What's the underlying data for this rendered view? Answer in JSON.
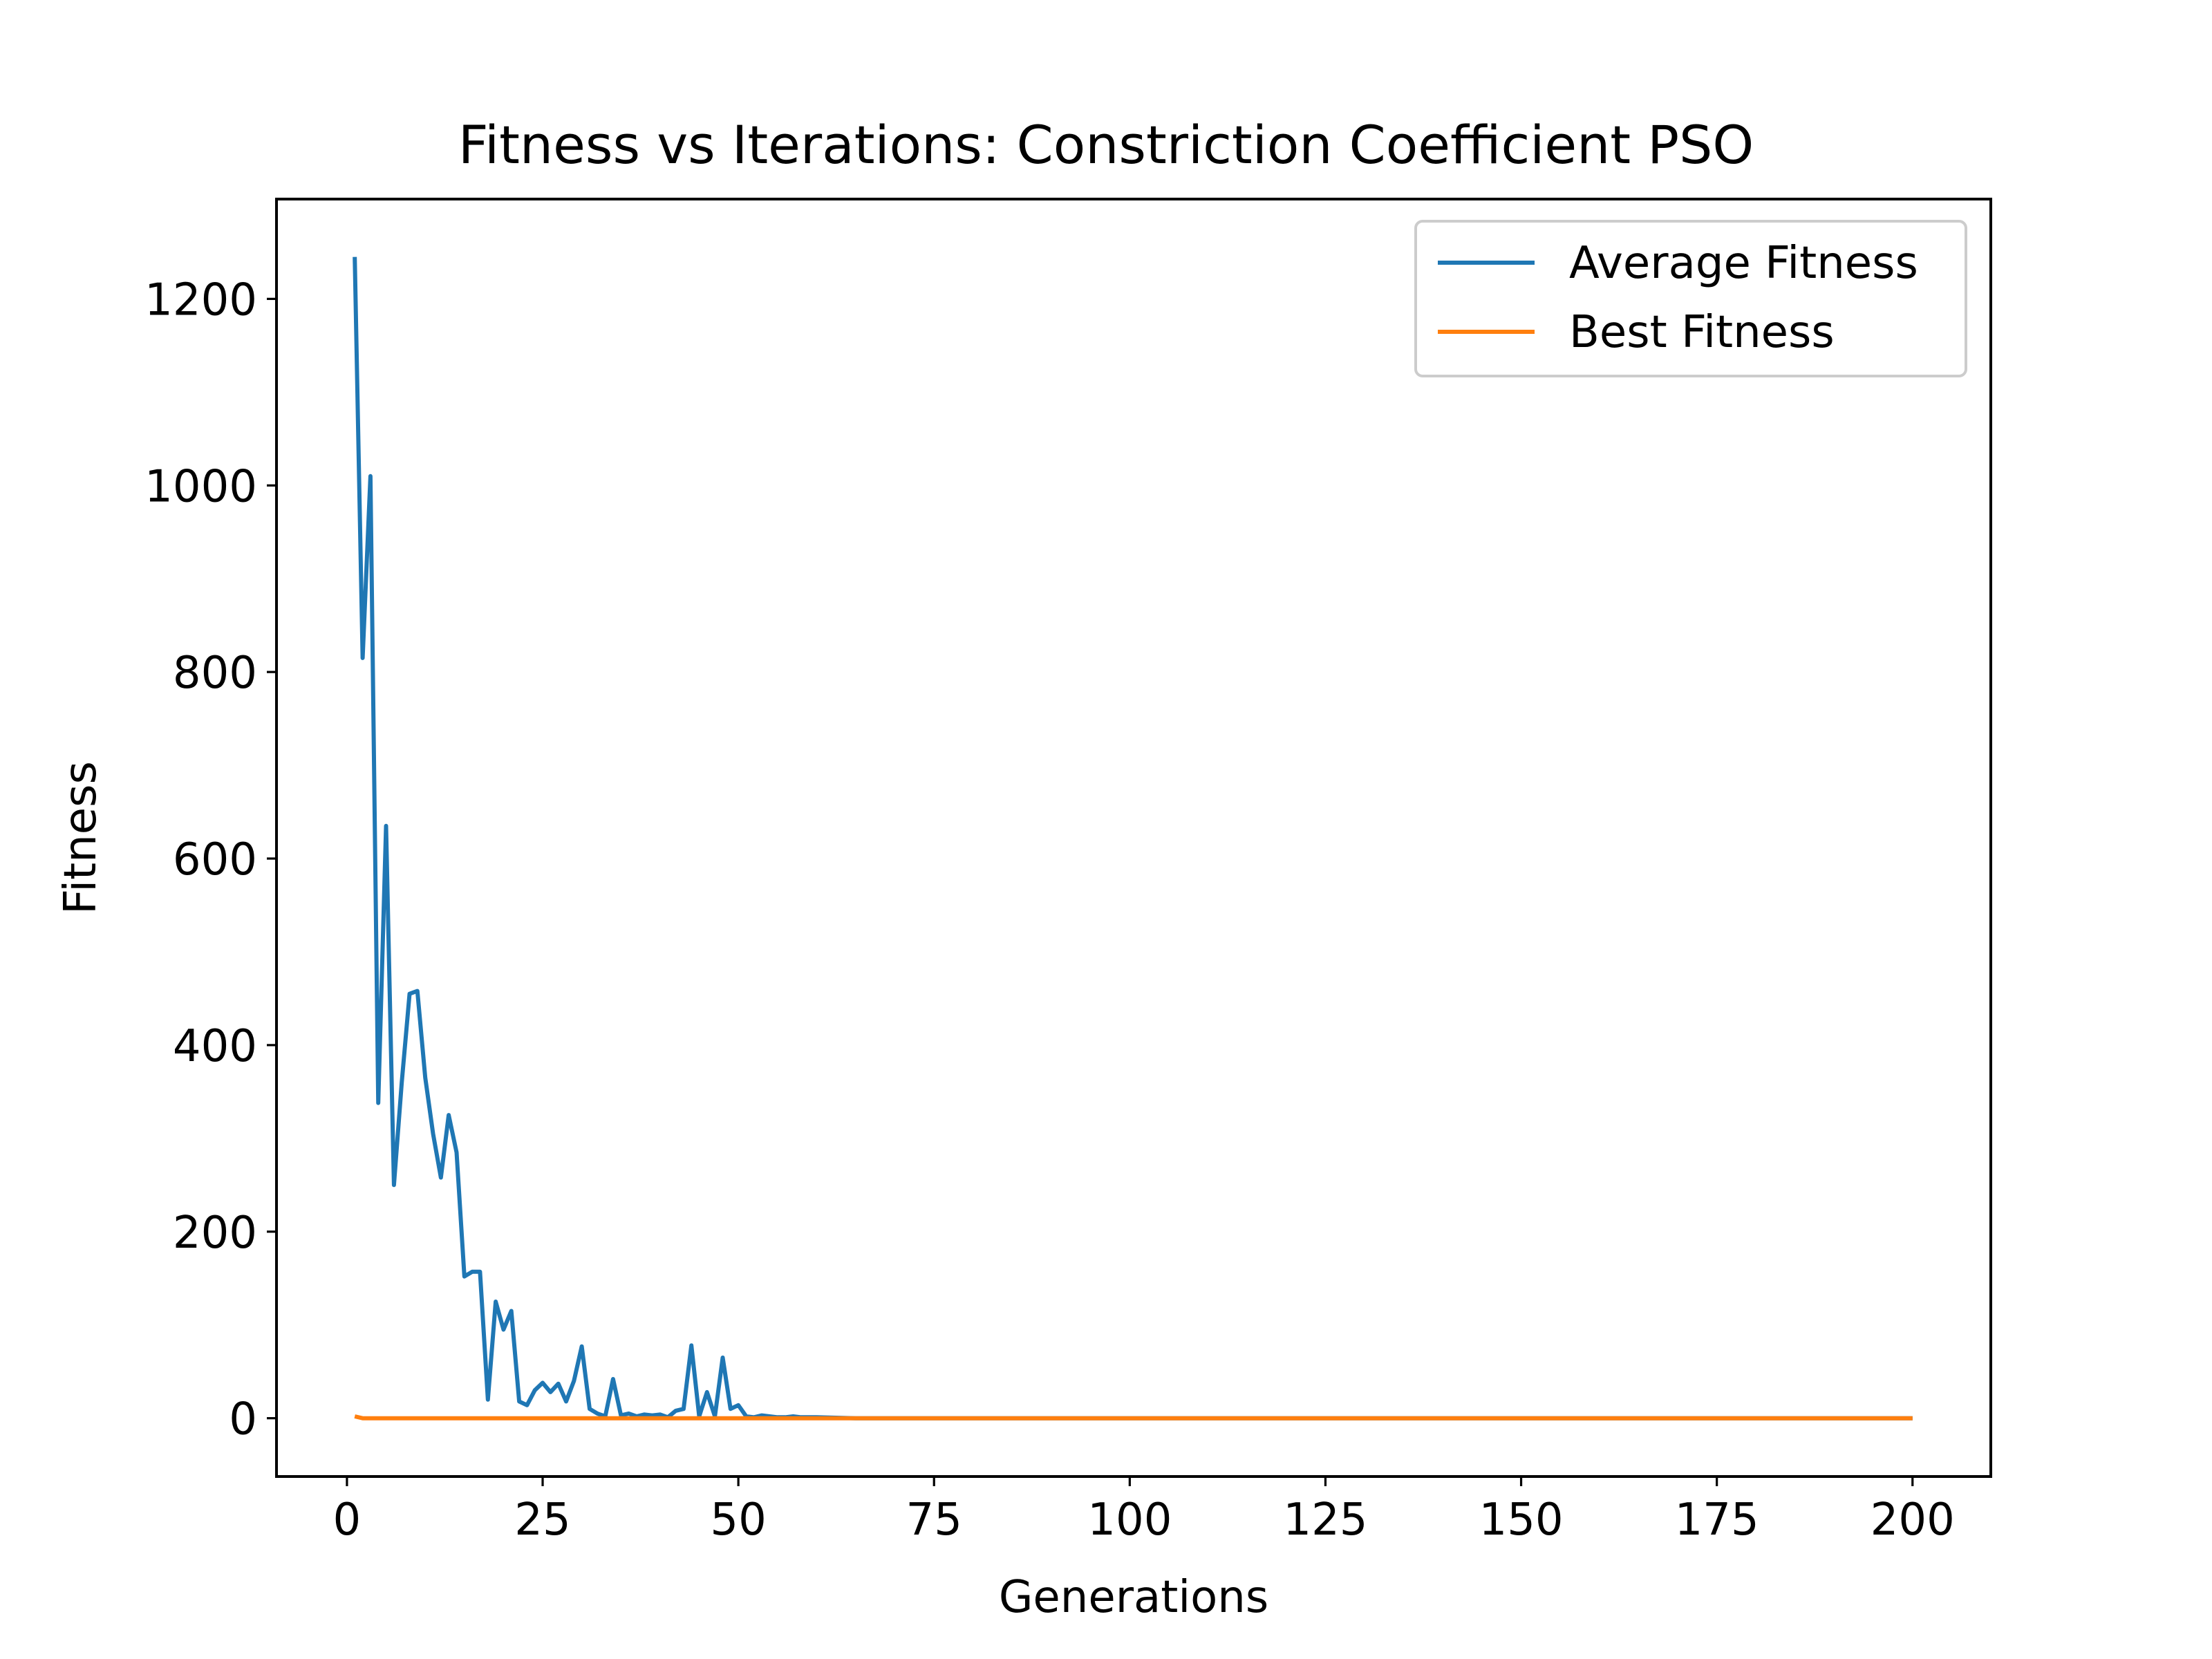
{
  "chart_data": {
    "type": "line",
    "title": "Fitness vs Iterations: Constriction Coefficient PSO",
    "xlabel": "Generations",
    "ylabel": "Fitness",
    "xlim": [
      -9,
      210
    ],
    "ylim": [
      -62.5,
      1307
    ],
    "xticks": [
      0,
      25,
      50,
      75,
      100,
      125,
      150,
      175,
      200
    ],
    "yticks": [
      0,
      200,
      400,
      600,
      800,
      1000,
      1200
    ],
    "grid": false,
    "legend_position": "top-right",
    "series": [
      {
        "name": "Average Fitness",
        "color": "#1f77b4",
        "points": [
          [
            1,
            1245
          ],
          [
            2,
            815
          ],
          [
            3,
            1010
          ],
          [
            4,
            338
          ],
          [
            5,
            635
          ],
          [
            6,
            250
          ],
          [
            7,
            360
          ],
          [
            8,
            455
          ],
          [
            9,
            458
          ],
          [
            10,
            365
          ],
          [
            11,
            305
          ],
          [
            12,
            258
          ],
          [
            13,
            325
          ],
          [
            14,
            285
          ],
          [
            15,
            152
          ],
          [
            16,
            157
          ],
          [
            17,
            157
          ],
          [
            18,
            20
          ],
          [
            19,
            125
          ],
          [
            20,
            95
          ],
          [
            21,
            115
          ],
          [
            22,
            18
          ],
          [
            23,
            14
          ],
          [
            24,
            30
          ],
          [
            25,
            38
          ],
          [
            26,
            28
          ],
          [
            27,
            37
          ],
          [
            28,
            18
          ],
          [
            29,
            40
          ],
          [
            30,
            77
          ],
          [
            31,
            10
          ],
          [
            32,
            5
          ],
          [
            33,
            2
          ],
          [
            34,
            42
          ],
          [
            35,
            3
          ],
          [
            36,
            5
          ],
          [
            37,
            2
          ],
          [
            38,
            4
          ],
          [
            39,
            3
          ],
          [
            40,
            4
          ],
          [
            41,
            1
          ],
          [
            42,
            8
          ],
          [
            43,
            10
          ],
          [
            44,
            78
          ],
          [
            45,
            2
          ],
          [
            46,
            28
          ],
          [
            47,
            2
          ],
          [
            48,
            65
          ],
          [
            49,
            10
          ],
          [
            50,
            14
          ],
          [
            51,
            2
          ],
          [
            52,
            1
          ],
          [
            53,
            3
          ],
          [
            54,
            2
          ],
          [
            55,
            1
          ],
          [
            56,
            1
          ],
          [
            57,
            2
          ],
          [
            58,
            1
          ],
          [
            60,
            1
          ],
          [
            65,
            0
          ],
          [
            80,
            0
          ],
          [
            100,
            0
          ],
          [
            125,
            0
          ],
          [
            150,
            0
          ],
          [
            175,
            0
          ],
          [
            200,
            0
          ]
        ]
      },
      {
        "name": "Best Fitness",
        "color": "#ff7f0e",
        "points": [
          [
            1,
            2
          ],
          [
            2,
            0
          ],
          [
            50,
            0
          ],
          [
            100,
            0
          ],
          [
            150,
            0
          ],
          [
            200,
            0
          ]
        ]
      }
    ]
  }
}
